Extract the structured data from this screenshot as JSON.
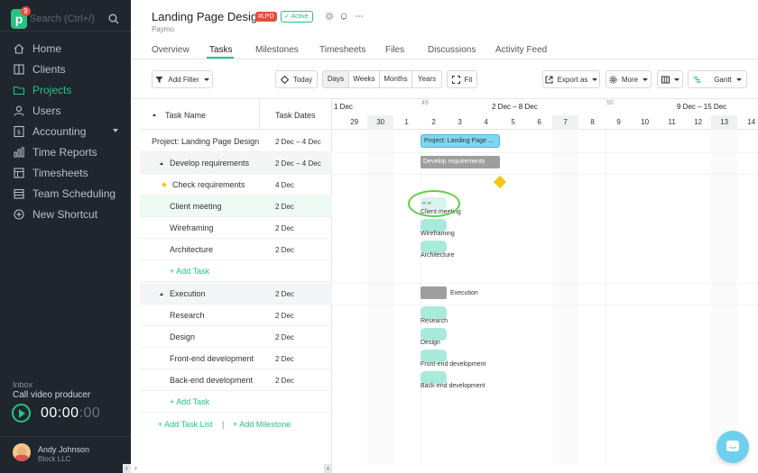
{
  "app": {
    "search_placeholder": "Search (Ctrl+/)",
    "notification_count": "9",
    "logo_letter": "p"
  },
  "sidebar": {
    "items": [
      {
        "label": "Home",
        "icon": "home-icon"
      },
      {
        "label": "Clients",
        "icon": "clients-icon"
      },
      {
        "label": "Projects",
        "icon": "folder-icon",
        "active": true
      },
      {
        "label": "Users",
        "icon": "user-icon"
      },
      {
        "label": "Accounting",
        "icon": "accounting-icon",
        "has_dropdown": true
      },
      {
        "label": "Time Reports",
        "icon": "chart-icon"
      },
      {
        "label": "Timesheets",
        "icon": "timesheet-icon"
      },
      {
        "label": "Team Scheduling",
        "icon": "calendar-icon"
      },
      {
        "label": "New Shortcut",
        "icon": "plus-circle-icon"
      }
    ],
    "inbox_label": "Inbox",
    "inbox_task": "Call video producer",
    "timer": {
      "hm": "00:00",
      "sec": ":00"
    },
    "user": {
      "name": "Andy Johnson",
      "company": "Block LLC"
    }
  },
  "header": {
    "title": "Landing Page Design",
    "code": "#LPD",
    "status": "Active",
    "client": "Paymo",
    "tabs": [
      "Overview",
      "Tasks",
      "Milestones",
      "Timesheets",
      "Files",
      "Discussions",
      "Activity Feed"
    ],
    "active_tab": "Tasks"
  },
  "toolbar": {
    "add_filter": "Add Filter",
    "today": "Today",
    "scales": [
      "Days",
      "Weeks",
      "Months",
      "Years"
    ],
    "active_scale": "Days",
    "fit": "Fit",
    "export": "Export as",
    "more": "More",
    "view": "Gantt"
  },
  "task_list": {
    "col_name": "Task Name",
    "col_dates": "Task Dates",
    "rows": [
      {
        "name": "Project: Landing Page Design",
        "dates": "2 Dec – 4 Dec",
        "type": "project"
      },
      {
        "name": "Develop requirements",
        "dates": "2 Dec – 4 Dec",
        "type": "group"
      },
      {
        "name": "Check requirements",
        "dates": "4 Dec",
        "type": "milestone"
      },
      {
        "name": "Client meeting",
        "dates": "2 Dec",
        "type": "task"
      },
      {
        "name": "Wireframing",
        "dates": "2 Dec",
        "type": "task"
      },
      {
        "name": "Architecture",
        "dates": "2 Dec",
        "type": "task"
      },
      {
        "name": "+ Add Task",
        "type": "add"
      },
      {
        "name": "Execution",
        "dates": "2 Dec",
        "type": "group"
      },
      {
        "name": "Research",
        "dates": "2 Dec",
        "type": "task"
      },
      {
        "name": "Design",
        "dates": "2 Dec",
        "type": "task"
      },
      {
        "name": "Front-end development",
        "dates": "2 Dec",
        "type": "task"
      },
      {
        "name": "Back-end development",
        "dates": "2 Dec",
        "type": "task"
      },
      {
        "name": "+ Add Task",
        "type": "add"
      }
    ],
    "add_task_list": "+ Add Task List",
    "separator": "|",
    "add_milestone": "+ Add Milestone"
  },
  "gantt": {
    "weeks": [
      {
        "label": "1 Dec",
        "num": ""
      },
      {
        "label": "2 Dec – 8 Dec",
        "num": "49"
      },
      {
        "label": "",
        "num": "50"
      },
      {
        "label": "9 Dec – 15 Dec",
        "num": ""
      }
    ],
    "days": [
      "29",
      "30",
      "1",
      "2",
      "3",
      "4",
      "5",
      "6",
      "7",
      "8",
      "9",
      "10",
      "11",
      "12",
      "13",
      "14"
    ],
    "weekend_days": [
      "30",
      "7",
      "14"
    ],
    "bars": {
      "project": "Project: Landing Page ...",
      "develop": "Develop requirements",
      "client_meeting": "Client meeting",
      "wireframing": "Wireframing",
      "architecture": "Architecture",
      "execution": "Execution",
      "research": "Research",
      "design": "Design",
      "frontend": "Front-end development",
      "backend": "Back-end development"
    },
    "drag_handles": "‹› ‹›"
  },
  "colors": {
    "accent": "#26c281",
    "sidebar_bg": "#1f262e",
    "project_bar": "#7fd6f0",
    "task_bar": "#a8eadb",
    "group_bar": "#9e9e9e",
    "milestone": "#f5c518",
    "highlight_circle": "#5ed044"
  }
}
